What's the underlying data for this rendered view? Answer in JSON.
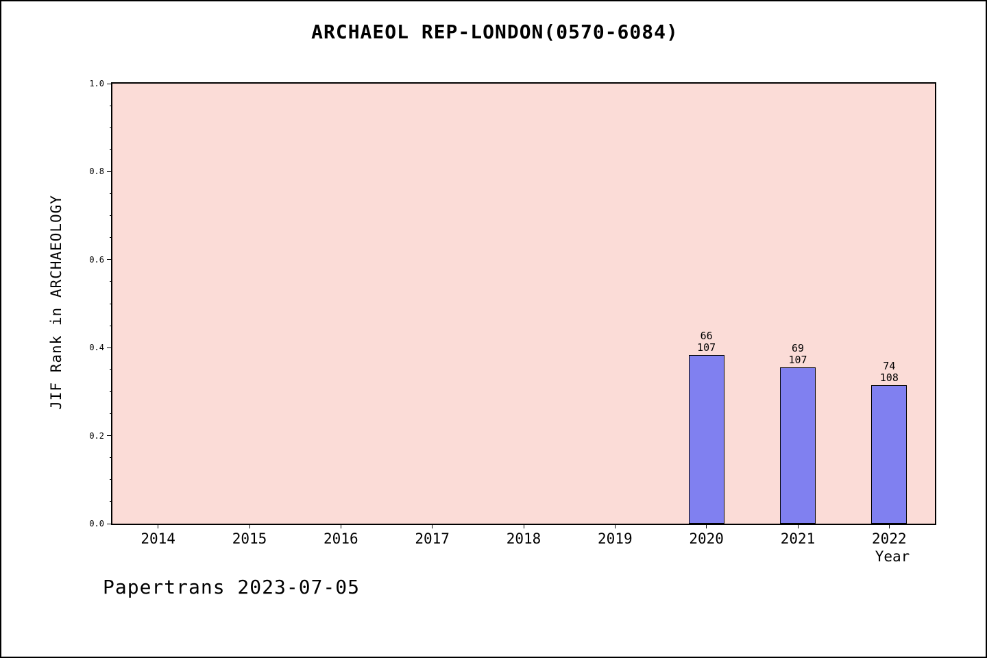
{
  "chart_data": {
    "type": "bar",
    "title": "ARCHAEOL REP-LONDON(0570-6084)",
    "xlabel": "Year",
    "ylabel": "JIF Rank in ARCHAEOLOGY",
    "footer": "Papertrans 2023-07-05",
    "categories": [
      "2014",
      "2015",
      "2016",
      "2017",
      "2018",
      "2019",
      "2020",
      "2021",
      "2022"
    ],
    "bars": [
      {
        "category": "2020",
        "value": 0.383,
        "label_lines": [
          "66",
          "107"
        ]
      },
      {
        "category": "2021",
        "value": 0.355,
        "label_lines": [
          "69",
          "107"
        ]
      },
      {
        "category": "2022",
        "value": 0.315,
        "label_lines": [
          "74",
          "108"
        ]
      }
    ],
    "ylim": [
      0.0,
      1.0
    ],
    "yticks": [
      "0.0",
      "0.2",
      "0.4",
      "0.6",
      "0.8",
      "1.0"
    ],
    "ytick_minor_step": 0.05,
    "grid": "off",
    "legend": "none",
    "plot_bg_color": "#fbdcd7",
    "bar_color": "#8080f0",
    "bar_edge_color": "#000000"
  }
}
